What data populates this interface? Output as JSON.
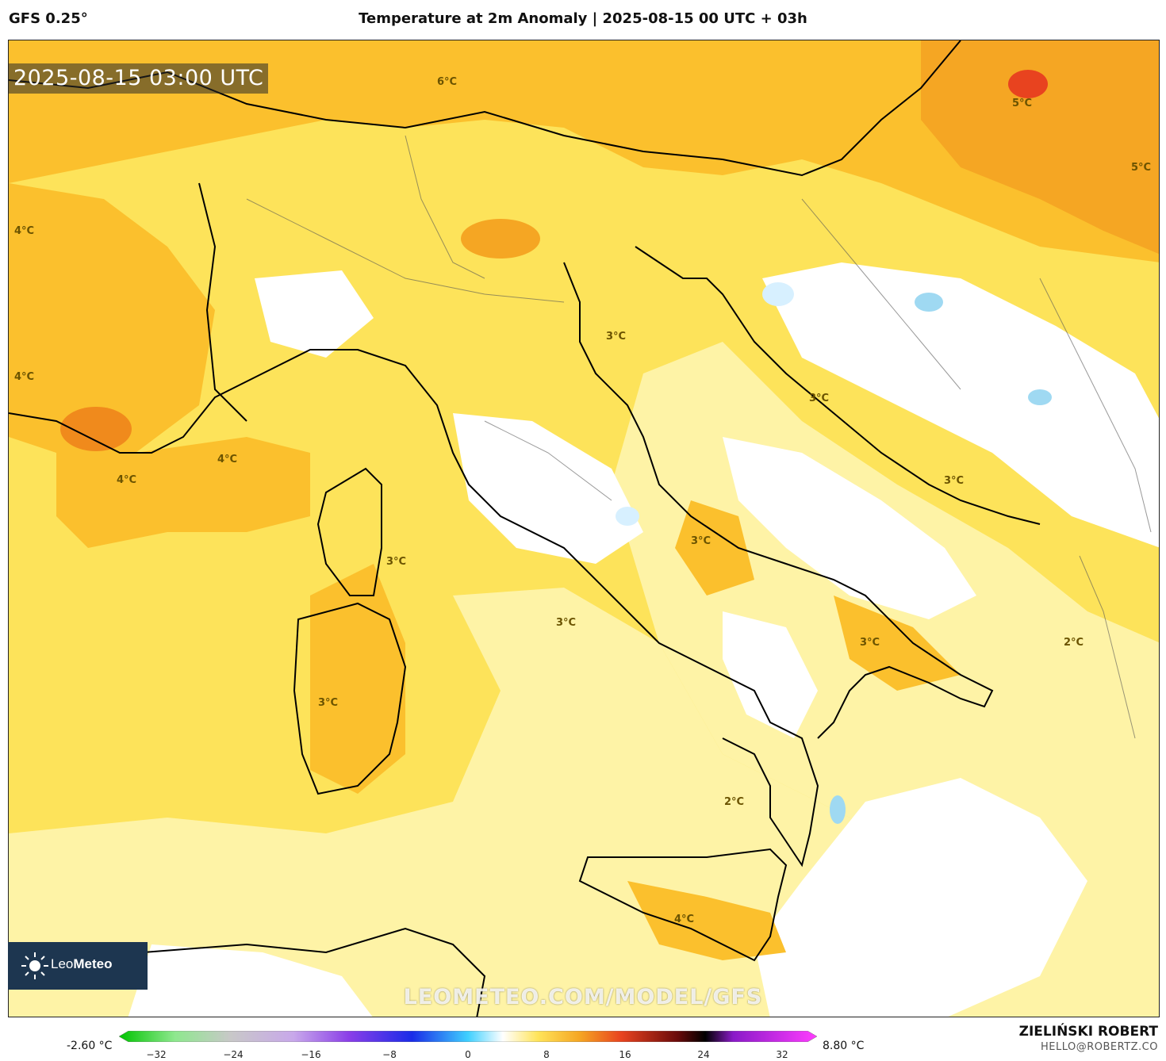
{
  "header": {
    "model": "GFS 0.25°",
    "title": "Temperature at 2m Anomaly | 2025-08-15 00 UTC + 03h"
  },
  "map": {
    "timestamp": "2025-08-15 03:00 UTC",
    "watermark": "LEOMETEO.COM/MODEL/GFS",
    "logo_text_light": "Leo",
    "logo_text_bold": "Meteo",
    "labels": [
      "6°C",
      "5°C",
      "5°C",
      "4°C",
      "4°C",
      "4°C",
      "4°C",
      "3°C",
      "3°C",
      "3°C",
      "3°C",
      "3°C",
      "3°C",
      "3°C",
      "3°C",
      "2°C",
      "2°C",
      "4°C"
    ],
    "colors": {
      "sea_warm": "#fde35a",
      "light_yellow": "#fef3a6",
      "orange": "#fbc02d",
      "dark_orange": "#f5a623",
      "hot_orange": "#f08a1c",
      "red": "#e8431f",
      "white": "#ffffff",
      "light_blue": "#d7f0ff",
      "blue": "#9fd9f2",
      "border": "#000000"
    }
  },
  "footer": {
    "min_value": "-2.60 °C",
    "max_value": "8.80 °C",
    "colorbar_ticks": [
      "−32",
      "−24",
      "−16",
      "−8",
      "0",
      "8",
      "16",
      "24",
      "32"
    ],
    "author": "ZIELIŃSKI ROBERT",
    "email": "HELLO@ROBERTZ.CO"
  }
}
